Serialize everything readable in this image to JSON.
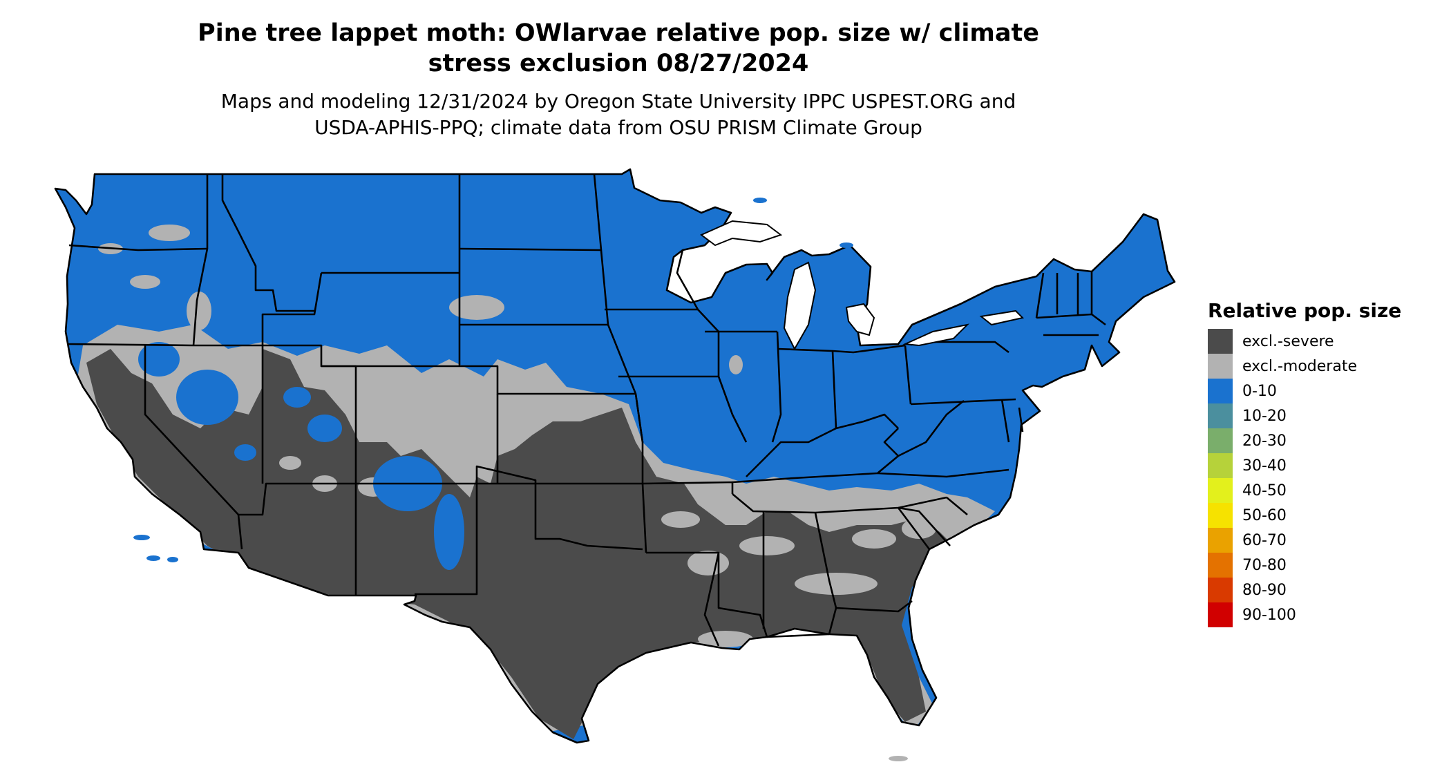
{
  "title_line1": "Pine tree lappet moth: OWlarvae relative pop. size w/ climate",
  "title_line2": "stress exclusion 08/27/2024",
  "subtitle_line1": "Maps and modeling 12/31/2024 by Oregon State University IPPC USPEST.ORG and",
  "subtitle_line2": "USDA-APHIS-PPQ; climate data from OSU PRISM Climate Group",
  "legend": {
    "title": "Relative pop. size",
    "items": [
      {
        "label": "excl.-severe",
        "color": "#4b4b4b"
      },
      {
        "label": "excl.-moderate",
        "color": "#b2b2b2"
      },
      {
        "label": "0-10",
        "color": "#1a72cf"
      },
      {
        "label": "10-20",
        "color": "#4b8f9e"
      },
      {
        "label": "20-30",
        "color": "#7aae6b"
      },
      {
        "label": "30-40",
        "color": "#b6d23a"
      },
      {
        "label": "40-50",
        "color": "#e3f01c"
      },
      {
        "label": "50-60",
        "color": "#f6e200"
      },
      {
        "label": "60-70",
        "color": "#eaa200"
      },
      {
        "label": "70-80",
        "color": "#e47200"
      },
      {
        "label": "80-90",
        "color": "#d93a00"
      },
      {
        "label": "90-100",
        "color": "#d10000"
      }
    ]
  },
  "colors": {
    "excl_severe": "#4b4b4b",
    "excl_moderate": "#b2b2b2",
    "low": "#1a72cf",
    "border": "#000000"
  }
}
